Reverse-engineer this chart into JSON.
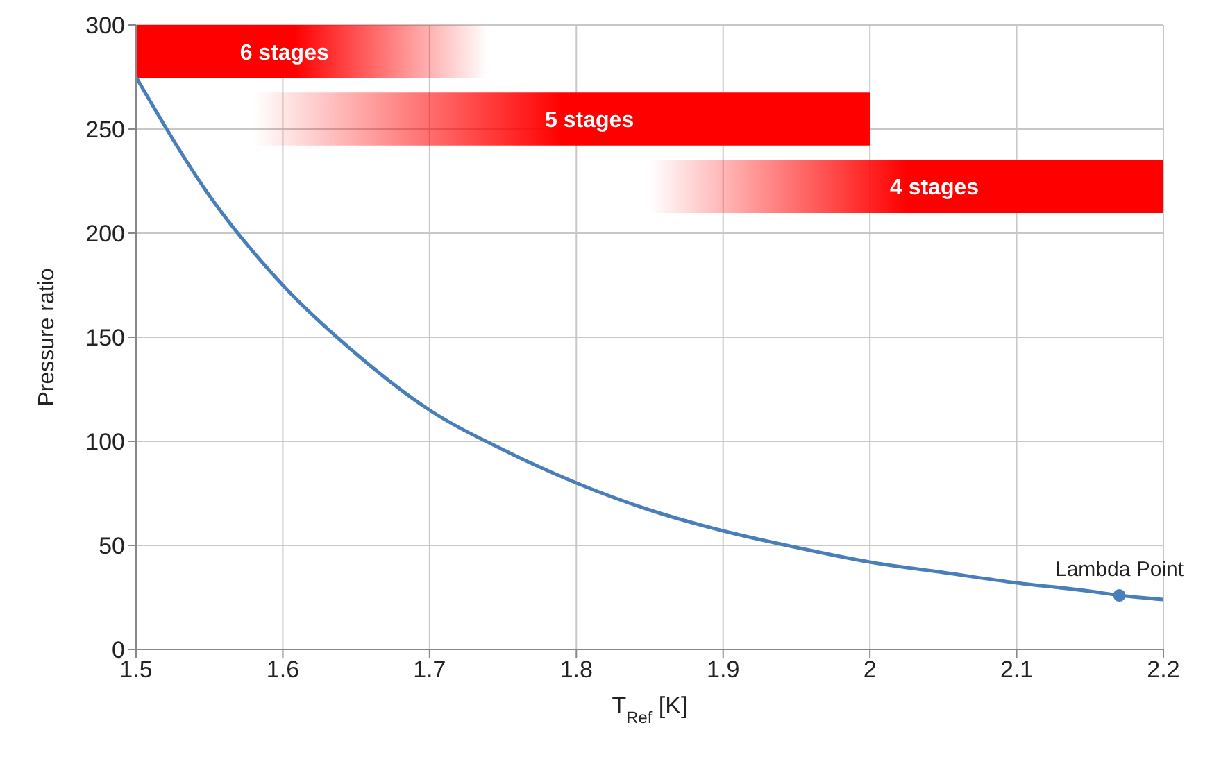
{
  "chart_data": {
    "type": "line",
    "xlabel": "T$_{Ref}$ [K]",
    "ylabel": "Pressure ratio",
    "xlim": [
      1.5,
      2.2
    ],
    "xticks": [
      1.5,
      1.6,
      1.7,
      1.8,
      1.9,
      2,
      2.1,
      2.2
    ],
    "ylim": [
      0,
      300
    ],
    "yticks": [
      0,
      50,
      100,
      150,
      200,
      250,
      300
    ],
    "grid": true,
    "marker": "none",
    "line_style": "solid",
    "series": [
      {
        "color": "#4a7ebb",
        "x": [
          1.5,
          1.55,
          1.6,
          1.65,
          1.7,
          1.75,
          1.8,
          1.85,
          1.9,
          1.95,
          2.0,
          2.05,
          2.1,
          2.15,
          2.17,
          2.2
        ],
        "values": [
          275,
          218,
          175,
          142,
          115,
          96,
          80,
          67,
          57,
          49,
          42,
          37,
          32,
          28,
          26,
          24
        ]
      },
      {
        "type": "scatter",
        "color": "#4a7ebb",
        "marker": "circle",
        "x": [
          2.17
        ],
        "values": [
          26
        ]
      }
    ],
    "bands": [
      {
        "axis": "x",
        "from": 1.5,
        "to": 1.74,
        "label": "6 stages",
        "color": "#ff0000"
      },
      {
        "axis": "x",
        "from": 1.58,
        "to": 2.0,
        "label": "5 stages",
        "color": "#ff0000"
      },
      {
        "axis": "x",
        "from": 1.85,
        "to": 2.2,
        "label": "4 stages",
        "color": "#ff0000"
      }
    ],
    "annotations": [
      {
        "text": "Lambda Point",
        "x": 2.17,
        "y": 26
      }
    ]
  }
}
